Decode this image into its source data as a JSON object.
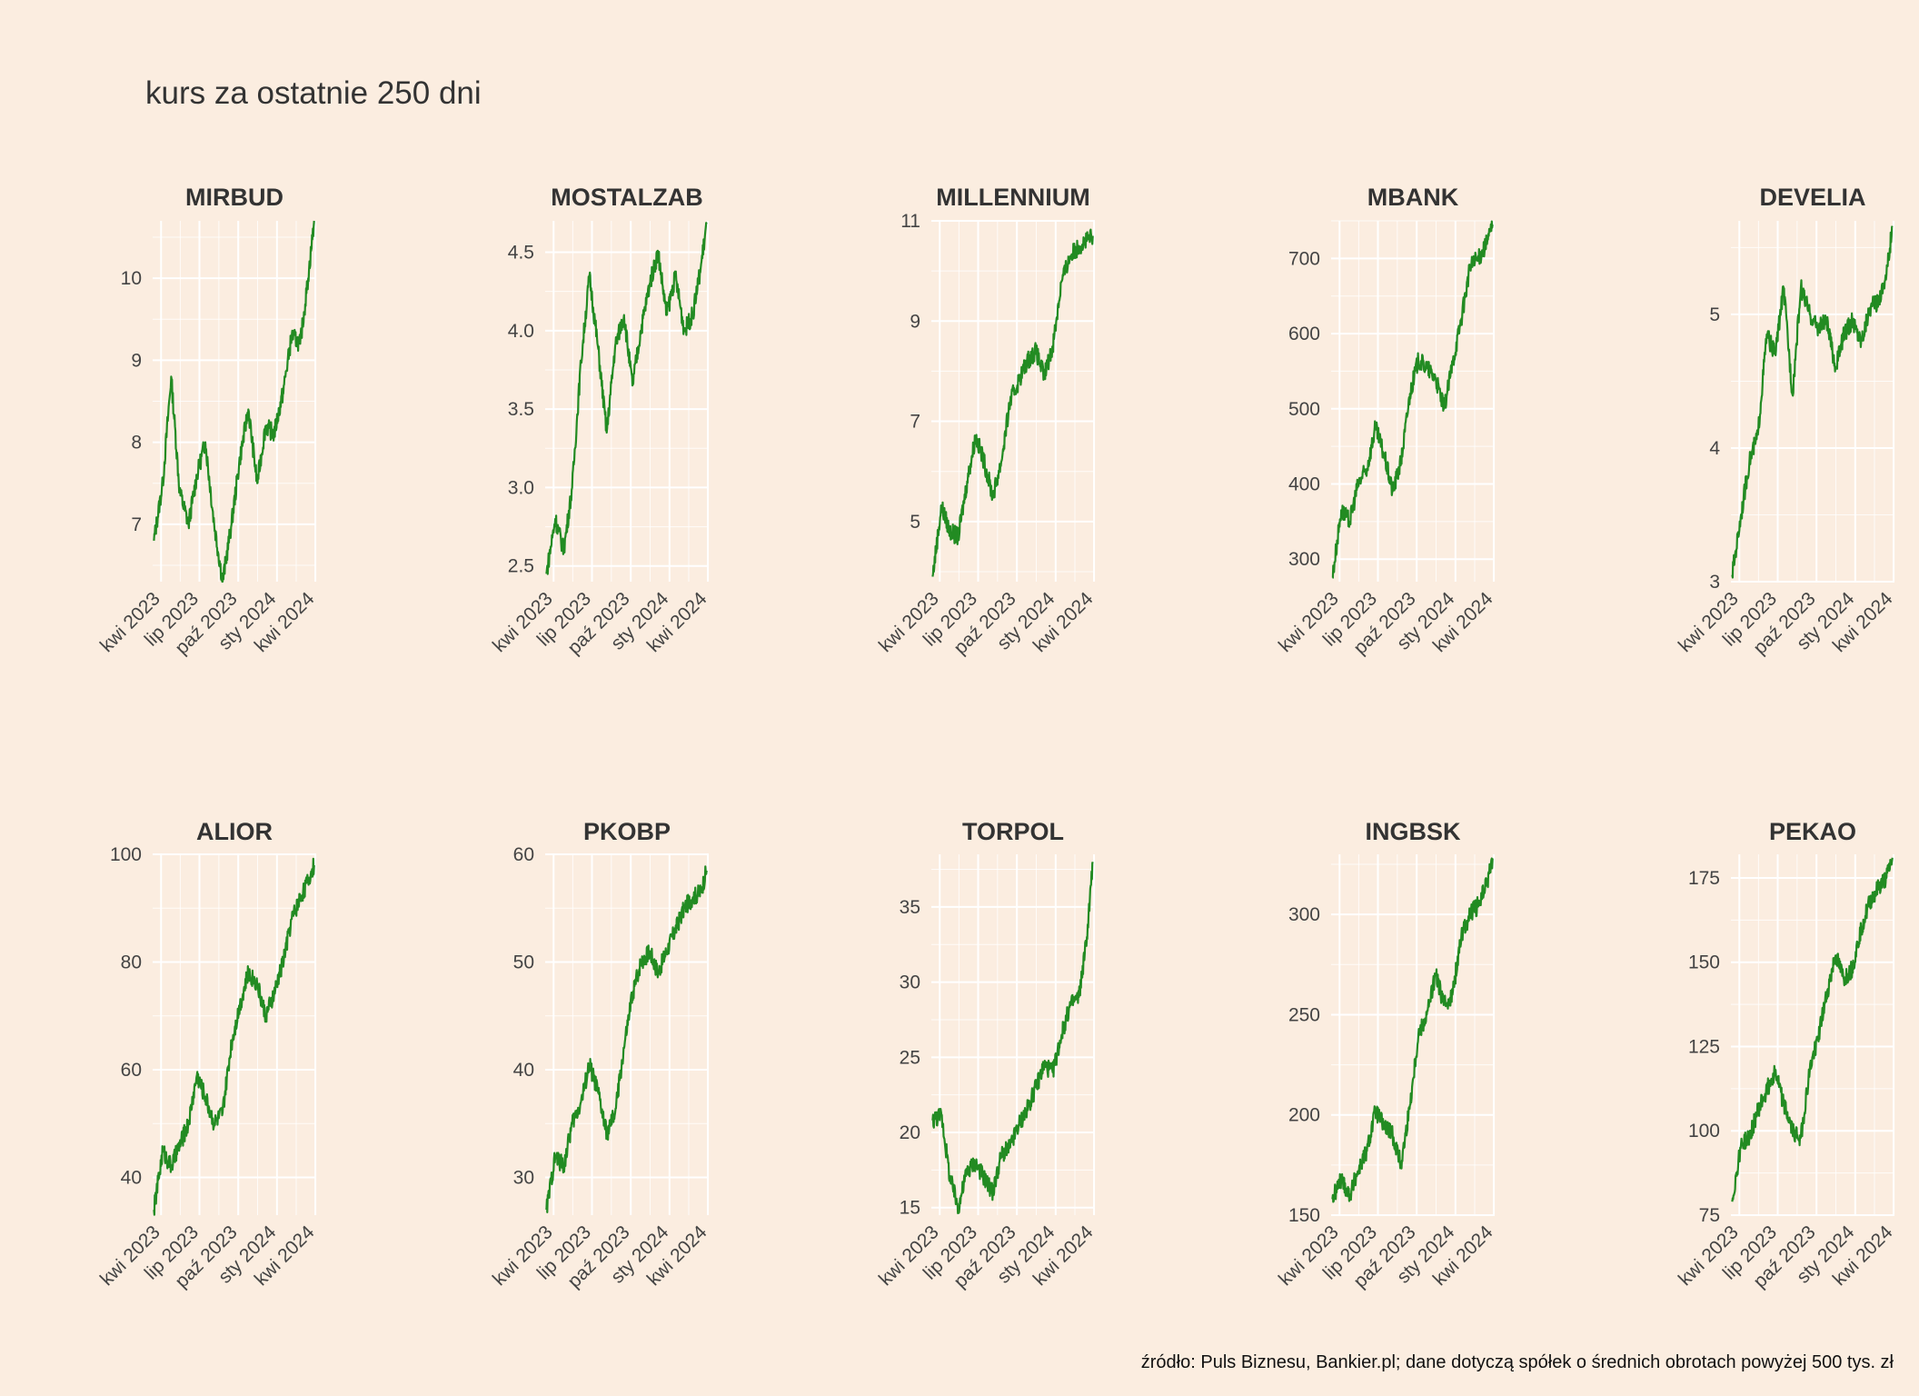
{
  "title": "kurs za ostatnie 250 dni",
  "caption": "źródło: Puls Biznesu, Bankier.pl; dane dotyczą spółek o średnich obrotach powyżej 500 tys. zł",
  "colors": {
    "background": "#FBEDE0",
    "line": "#228B22",
    "grid": "#FFFFFF"
  },
  "chart_data": [
    {
      "type": "line",
      "title": "MIRBUD",
      "x": [
        "2023-03-15",
        "2023-04-05",
        "2023-04-25",
        "2023-05-15",
        "2023-06-05",
        "2023-06-25",
        "2023-07-15",
        "2023-08-05",
        "2023-08-25",
        "2023-09-15",
        "2023-10-05",
        "2023-10-25",
        "2023-11-15",
        "2023-12-05",
        "2023-12-25",
        "2024-01-15",
        "2024-02-05",
        "2024-02-25",
        "2024-03-15",
        "2024-03-29"
      ],
      "y": [
        6.8,
        7.5,
        8.8,
        7.4,
        7.0,
        7.6,
        8.0,
        7.0,
        6.3,
        7.0,
        7.8,
        8.4,
        7.5,
        8.2,
        8.1,
        8.6,
        9.3,
        9.2,
        10.0,
        10.7
      ],
      "xticks": [
        "kwi 2023",
        "lip 2023",
        "paź 2023",
        "sty 2024",
        "kwi 2024"
      ],
      "yticks": [
        "7",
        "8",
        "9",
        "10"
      ],
      "ylim": [
        6.3,
        10.7
      ],
      "grid": true
    },
    {
      "type": "line",
      "title": "MOSTALZAB",
      "x": [
        "2023-03-15",
        "2023-04-05",
        "2023-04-25",
        "2023-05-15",
        "2023-06-05",
        "2023-06-25",
        "2023-07-15",
        "2023-08-05",
        "2023-08-25",
        "2023-09-15",
        "2023-10-05",
        "2023-10-25",
        "2023-11-15",
        "2023-12-05",
        "2023-12-25",
        "2024-01-15",
        "2024-02-05",
        "2024-02-25",
        "2024-03-15",
        "2024-03-29"
      ],
      "y": [
        2.45,
        2.8,
        2.6,
        3.0,
        3.8,
        4.35,
        3.9,
        3.35,
        3.9,
        4.1,
        3.65,
        4.0,
        4.3,
        4.5,
        4.1,
        4.35,
        4.0,
        4.1,
        4.4,
        4.68
      ],
      "xticks": [
        "kwi 2023",
        "lip 2023",
        "paź 2023",
        "sty 2024",
        "kwi 2024"
      ],
      "yticks": [
        "2.5",
        "3.0",
        "3.5",
        "4.0",
        "4.5"
      ],
      "ylim": [
        2.4,
        4.7
      ],
      "grid": true
    },
    {
      "type": "line",
      "title": "MILLENNIUM",
      "x": [
        "2023-03-15",
        "2023-04-05",
        "2023-04-25",
        "2023-05-15",
        "2023-06-05",
        "2023-06-25",
        "2023-07-15",
        "2023-08-05",
        "2023-08-25",
        "2023-09-15",
        "2023-10-05",
        "2023-10-25",
        "2023-11-15",
        "2023-12-05",
        "2023-12-25",
        "2024-01-15",
        "2024-02-05",
        "2024-02-25",
        "2024-03-15",
        "2024-03-29"
      ],
      "y": [
        3.9,
        5.3,
        4.8,
        4.7,
        5.8,
        6.7,
        6.2,
        5.5,
        6.2,
        7.4,
        7.8,
        8.2,
        8.4,
        7.9,
        8.5,
        9.8,
        10.3,
        10.5,
        10.6,
        10.7
      ],
      "xticks": [
        "kwi 2023",
        "lip 2023",
        "paź 2023",
        "sty 2024",
        "kwi 2024"
      ],
      "yticks": [
        "5",
        "7",
        "9",
        "11"
      ],
      "ylim": [
        3.8,
        11.0
      ],
      "grid": true
    },
    {
      "type": "line",
      "title": "MBANK",
      "x": [
        "2023-03-15",
        "2023-04-05",
        "2023-04-25",
        "2023-05-15",
        "2023-06-05",
        "2023-06-25",
        "2023-07-15",
        "2023-08-05",
        "2023-08-25",
        "2023-09-15",
        "2023-10-05",
        "2023-10-25",
        "2023-11-15",
        "2023-12-05",
        "2023-12-25",
        "2024-01-15",
        "2024-02-05",
        "2024-02-25",
        "2024-03-15",
        "2024-03-29"
      ],
      "y": [
        275,
        365,
        350,
        400,
        420,
        475,
        440,
        390,
        430,
        520,
        565,
        555,
        540,
        500,
        560,
        620,
        690,
        700,
        720,
        745
      ],
      "xticks": [
        "kwi 2023",
        "lip 2023",
        "paź 2023",
        "sty 2024",
        "kwi 2024"
      ],
      "yticks": [
        "300",
        "400",
        "500",
        "600",
        "700"
      ],
      "ylim": [
        270,
        750
      ],
      "grid": true
    },
    {
      "type": "line",
      "title": "DEVELIA",
      "x": [
        "2023-03-15",
        "2023-04-05",
        "2023-04-25",
        "2023-05-15",
        "2023-06-05",
        "2023-06-25",
        "2023-07-15",
        "2023-08-05",
        "2023-08-25",
        "2023-09-15",
        "2023-10-05",
        "2023-10-25",
        "2023-11-15",
        "2023-12-05",
        "2023-12-25",
        "2024-01-15",
        "2024-02-05",
        "2024-02-25",
        "2024-03-15",
        "2024-03-29"
      ],
      "y": [
        3.05,
        3.5,
        3.9,
        4.1,
        4.85,
        4.7,
        5.2,
        4.4,
        5.2,
        5.0,
        4.9,
        4.95,
        4.6,
        4.85,
        4.95,
        4.8,
        5.05,
        5.1,
        5.3,
        5.65
      ],
      "xticks": [
        "kwi 2023",
        "lip 2023",
        "paź 2023",
        "sty 2024",
        "kwi 2024"
      ],
      "yticks": [
        "3",
        "4",
        "5"
      ],
      "ylim": [
        3.0,
        5.7
      ],
      "grid": true
    },
    {
      "type": "line",
      "title": "ALIOR",
      "x": [
        "2023-03-15",
        "2023-04-05",
        "2023-04-25",
        "2023-05-15",
        "2023-06-05",
        "2023-06-25",
        "2023-07-15",
        "2023-08-05",
        "2023-08-25",
        "2023-09-15",
        "2023-10-05",
        "2023-10-25",
        "2023-11-15",
        "2023-12-05",
        "2023-12-25",
        "2024-01-15",
        "2024-02-05",
        "2024-02-25",
        "2024-03-15",
        "2024-03-29"
      ],
      "y": [
        34,
        45,
        42,
        46,
        50,
        59,
        55,
        50,
        52,
        65,
        72,
        78,
        76,
        70,
        74,
        80,
        88,
        92,
        95,
        98
      ],
      "xticks": [
        "kwi 2023",
        "lip 2023",
        "paź 2023",
        "sty 2024",
        "kwi 2024"
      ],
      "yticks": [
        "40",
        "60",
        "80",
        "100"
      ],
      "ylim": [
        33,
        100
      ],
      "grid": true
    },
    {
      "type": "line",
      "title": "PKOBP",
      "x": [
        "2023-03-15",
        "2023-04-05",
        "2023-04-25",
        "2023-05-15",
        "2023-06-05",
        "2023-06-25",
        "2023-07-15",
        "2023-08-05",
        "2023-08-25",
        "2023-09-15",
        "2023-10-05",
        "2023-10-25",
        "2023-11-15",
        "2023-12-05",
        "2023-12-25",
        "2024-01-15",
        "2024-02-05",
        "2024-02-25",
        "2024-03-15",
        "2024-03-29"
      ],
      "y": [
        27,
        32,
        31,
        35,
        37,
        40.5,
        38,
        34,
        36,
        42,
        47,
        50,
        51,
        49,
        51,
        53,
        55,
        56,
        56.5,
        58.5
      ],
      "xticks": [
        "kwi 2023",
        "lip 2023",
        "paź 2023",
        "sty 2024",
        "kwi 2024"
      ],
      "yticks": [
        "30",
        "40",
        "50",
        "60"
      ],
      "ylim": [
        26.5,
        60
      ],
      "grid": true
    },
    {
      "type": "line",
      "title": "TORPOL",
      "x": [
        "2023-03-15",
        "2023-04-05",
        "2023-04-25",
        "2023-05-15",
        "2023-06-05",
        "2023-06-25",
        "2023-07-15",
        "2023-08-05",
        "2023-08-25",
        "2023-09-15",
        "2023-10-05",
        "2023-10-25",
        "2023-11-15",
        "2023-12-05",
        "2023-12-25",
        "2024-01-15",
        "2024-02-05",
        "2024-02-25",
        "2024-03-15",
        "2024-03-29"
      ],
      "y": [
        20.8,
        21.2,
        17.0,
        15.0,
        17.5,
        18.0,
        17.0,
        16.0,
        18.5,
        19.0,
        20.5,
        21.5,
        23.0,
        24.5,
        24.0,
        26.5,
        28.5,
        29.0,
        33.0,
        38.0
      ],
      "xticks": [
        "kwi 2023",
        "lip 2023",
        "paź 2023",
        "sty 2024",
        "kwi 2024"
      ],
      "yticks": [
        "15",
        "20",
        "25",
        "30",
        "35"
      ],
      "ylim": [
        14.5,
        38.5
      ],
      "grid": true
    },
    {
      "type": "line",
      "title": "INGBSK",
      "x": [
        "2023-03-15",
        "2023-04-05",
        "2023-04-25",
        "2023-05-15",
        "2023-06-05",
        "2023-06-25",
        "2023-07-15",
        "2023-08-05",
        "2023-08-25",
        "2023-09-15",
        "2023-10-05",
        "2023-10-25",
        "2023-11-15",
        "2023-12-05",
        "2023-12-25",
        "2024-01-15",
        "2024-02-05",
        "2024-02-25",
        "2024-03-15",
        "2024-03-29"
      ],
      "y": [
        158,
        168,
        160,
        172,
        182,
        202,
        195,
        190,
        175,
        205,
        240,
        250,
        270,
        255,
        260,
        290,
        300,
        305,
        315,
        328
      ],
      "xticks": [
        "kwi 2023",
        "lip 2023",
        "paź 2023",
        "sty 2024",
        "kwi 2024"
      ],
      "yticks": [
        "150",
        "200",
        "250",
        "300"
      ],
      "ylim": [
        150,
        330
      ],
      "grid": true
    },
    {
      "type": "line",
      "title": "PEKAO",
      "x": [
        "2023-03-15",
        "2023-04-05",
        "2023-04-25",
        "2023-05-15",
        "2023-06-05",
        "2023-06-25",
        "2023-07-15",
        "2023-08-05",
        "2023-08-25",
        "2023-09-15",
        "2023-10-05",
        "2023-10-25",
        "2023-11-15",
        "2023-12-05",
        "2023-12-25",
        "2024-01-15",
        "2024-02-05",
        "2024-02-25",
        "2024-03-15",
        "2024-03-29"
      ],
      "y": [
        79,
        96,
        98,
        106,
        112,
        118,
        108,
        100,
        98,
        118,
        128,
        140,
        152,
        145,
        148,
        160,
        168,
        172,
        175,
        181
      ],
      "xticks": [
        "kwi 2023",
        "lip 2023",
        "paź 2023",
        "sty 2024",
        "kwi 2024"
      ],
      "yticks": [
        "75",
        "100",
        "125",
        "150",
        "175"
      ],
      "ylim": [
        75,
        182
      ],
      "grid": true
    }
  ]
}
